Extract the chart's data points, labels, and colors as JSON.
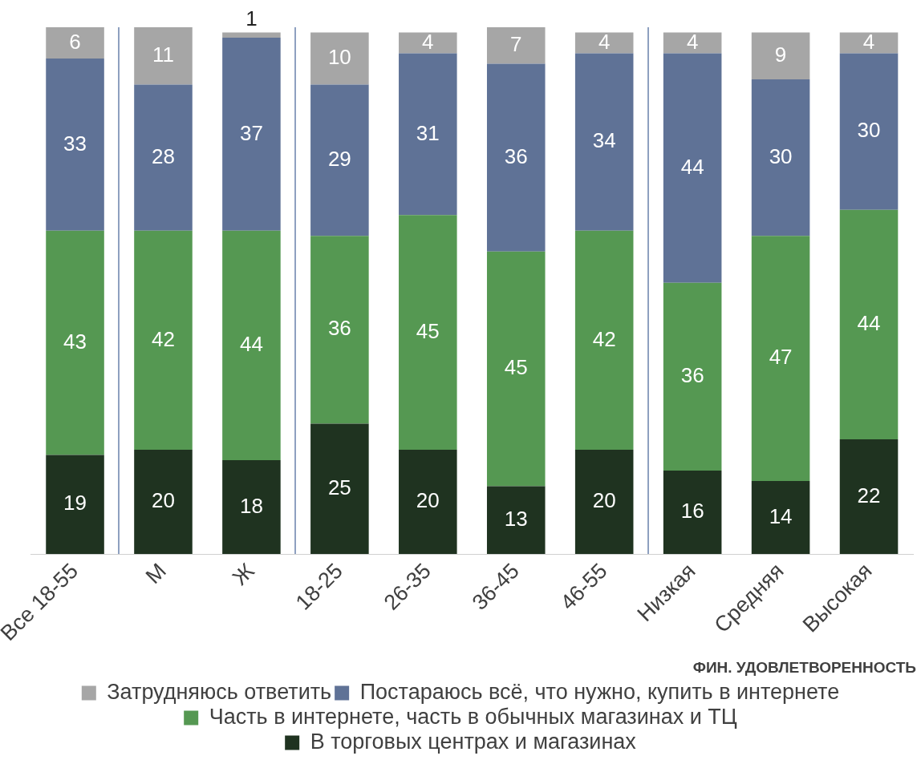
{
  "chart_data": {
    "type": "bar",
    "stacked": true,
    "data_labels": true,
    "grid": false,
    "legend": "bottom",
    "categories": [
      "Все 18-55",
      "М",
      "Ж",
      "18-25",
      "26-35",
      "36-45",
      "46-55",
      "Низкая",
      "Средняя",
      "Высокая"
    ],
    "series": [
      {
        "name": "В торговых центрах и магазинах",
        "color": "#1f3320",
        "values": [
          19,
          20,
          18,
          25,
          20,
          13,
          20,
          16,
          14,
          22
        ]
      },
      {
        "name": "Часть в интернете, часть в обычных магазинах и ТЦ",
        "color": "#559852",
        "values": [
          43,
          42,
          44,
          36,
          45,
          45,
          42,
          36,
          47,
          44
        ]
      },
      {
        "name": "Постараюсь всё, что нужно, купить в интернете",
        "color": "#5f7296",
        "values": [
          33,
          28,
          37,
          29,
          31,
          36,
          34,
          44,
          30,
          30
        ]
      },
      {
        "name": "Затрудняюсь ответить",
        "color": "#a6a6a6",
        "values": [
          6,
          11,
          1,
          10,
          4,
          7,
          4,
          4,
          9,
          4
        ]
      }
    ],
    "annotations": [
      "ФИН. УДОВЛЕТВОРЕННОСТЬ"
    ]
  }
}
